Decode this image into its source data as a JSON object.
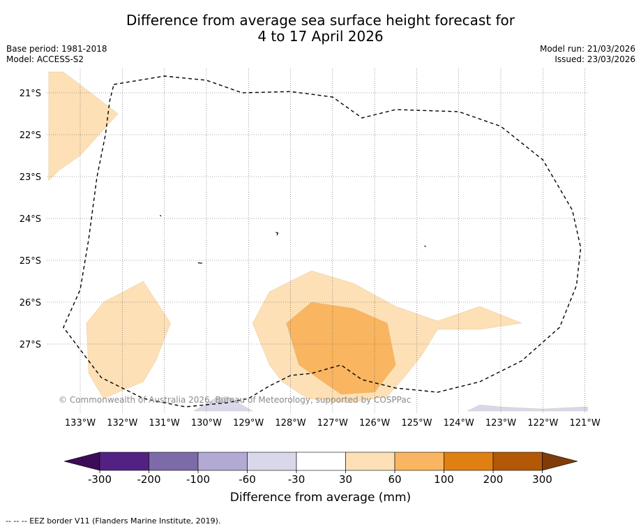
{
  "title": {
    "line1": "Difference from average sea surface height forecast for",
    "line2": "4 to 17 April 2026"
  },
  "meta_left": {
    "base_period": "Base period: 1981-2018",
    "model": "Model: ACCESS-S2"
  },
  "meta_right": {
    "model_run": "Model run: 21/03/2026",
    "issued": "Issued: 23/03/2026"
  },
  "map": {
    "lon_range": [
      -133.75,
      -120.9
    ],
    "lat_range": [
      -28.6,
      -20.4
    ],
    "lat_ticks": [
      {
        "lat": -21,
        "label": "21°S"
      },
      {
        "lat": -22,
        "label": "22°S"
      },
      {
        "lat": -23,
        "label": "23°S"
      },
      {
        "lat": -24,
        "label": "24°S"
      },
      {
        "lat": -25,
        "label": "25°S"
      },
      {
        "lat": -26,
        "label": "26°S"
      },
      {
        "lat": -27,
        "label": "27°S"
      }
    ],
    "lon_ticks": [
      {
        "lon": -133,
        "label": "133°W"
      },
      {
        "lon": -132,
        "label": "132°W"
      },
      {
        "lon": -131,
        "label": "131°W"
      },
      {
        "lon": -130,
        "label": "130°W"
      },
      {
        "lon": -129,
        "label": "129°W"
      },
      {
        "lon": -128,
        "label": "128°W"
      },
      {
        "lon": -127,
        "label": "127°W"
      },
      {
        "lon": -126,
        "label": "126°W"
      },
      {
        "lon": -125,
        "label": "125°W"
      },
      {
        "lon": -124,
        "label": "124°W"
      },
      {
        "lon": -123,
        "label": "123°W"
      },
      {
        "lon": -122,
        "label": "122°W"
      },
      {
        "lon": -121,
        "label": "121°W"
      }
    ],
    "regions": [
      {
        "name": "northwest-positive-area",
        "range": "30 to 60",
        "color": "#fde0b6",
        "coords": [
          [
            -133.75,
            -20.5
          ],
          [
            -133.4,
            -20.5
          ],
          [
            -132.1,
            -21.5
          ],
          [
            -133.0,
            -22.5
          ],
          [
            -133.5,
            -22.85
          ],
          [
            -133.75,
            -23.1
          ]
        ]
      },
      {
        "name": "southwest-positive-area",
        "range": "30 to 60",
        "color": "#fde0b6",
        "coords": [
          [
            -132.45,
            -26.0
          ],
          [
            -131.5,
            -25.5
          ],
          [
            -130.85,
            -26.5
          ],
          [
            -131.2,
            -27.4
          ],
          [
            -131.5,
            -27.9
          ],
          [
            -132.45,
            -28.3
          ],
          [
            -132.8,
            -27.7
          ],
          [
            -132.85,
            -26.5
          ]
        ]
      },
      {
        "name": "central-positive-area",
        "range": "30 to 60",
        "color": "#fde0b6",
        "coords": [
          [
            -127.5,
            -25.25
          ],
          [
            -126.5,
            -25.55
          ],
          [
            -125.5,
            -26.1
          ],
          [
            -124.5,
            -26.45
          ],
          [
            -123.5,
            -26.1
          ],
          [
            -122.5,
            -26.5
          ],
          [
            -123.5,
            -26.65
          ],
          [
            -124.5,
            -26.65
          ],
          [
            -124.9,
            -27.3
          ],
          [
            -125.3,
            -27.8
          ],
          [
            -125.7,
            -28.25
          ],
          [
            -126.6,
            -28.4
          ],
          [
            -127.6,
            -28.3
          ],
          [
            -128.2,
            -27.9
          ],
          [
            -128.5,
            -27.5
          ],
          [
            -128.9,
            -26.5
          ],
          [
            -128.5,
            -25.75
          ],
          [
            -128.0,
            -25.5
          ]
        ]
      },
      {
        "name": "central-core-positive-area",
        "range": "60 to 100",
        "color": "#f9b55f",
        "coords": [
          [
            -127.5,
            -26.0
          ],
          [
            -126.5,
            -26.15
          ],
          [
            -125.7,
            -26.5
          ],
          [
            -125.5,
            -27.5
          ],
          [
            -126.0,
            -28.15
          ],
          [
            -126.8,
            -28.2
          ],
          [
            -127.8,
            -27.5
          ],
          [
            -128.1,
            -26.5
          ]
        ]
      },
      {
        "name": "south-negative-area",
        "range": "-60 to -30",
        "color": "#d9d8ea",
        "coords": [
          [
            -130.3,
            -28.6
          ],
          [
            -129.8,
            -28.3
          ],
          [
            -129.5,
            -28.25
          ],
          [
            -128.9,
            -28.6
          ]
        ]
      },
      {
        "name": "southeast-negative-area",
        "range": "-60 to -30",
        "color": "#d9d8ea",
        "coords": [
          [
            -123.8,
            -28.6
          ],
          [
            -123.5,
            -28.45
          ],
          [
            -123.0,
            -28.5
          ],
          [
            -122.0,
            -28.55
          ],
          [
            -121.0,
            -28.5
          ],
          [
            -120.9,
            -28.5
          ],
          [
            -120.9,
            -28.6
          ]
        ]
      }
    ],
    "eez_border": [
      [
        -132.2,
        -20.8
      ],
      [
        -131.0,
        -20.6
      ],
      [
        -130.0,
        -20.7
      ],
      [
        -129.15,
        -21.0
      ],
      [
        -128.0,
        -20.97
      ],
      [
        -127.0,
        -21.1
      ],
      [
        -126.3,
        -21.6
      ],
      [
        -125.5,
        -21.4
      ],
      [
        -124.0,
        -21.45
      ],
      [
        -123.0,
        -21.8
      ],
      [
        -122.0,
        -22.6
      ],
      [
        -121.3,
        -23.8
      ],
      [
        -121.1,
        -24.7
      ],
      [
        -121.2,
        -25.6
      ],
      [
        -121.6,
        -26.6
      ],
      [
        -122.5,
        -27.4
      ],
      [
        -123.5,
        -27.9
      ],
      [
        -124.5,
        -28.15
      ],
      [
        -125.5,
        -28.05
      ],
      [
        -126.3,
        -27.85
      ],
      [
        -126.8,
        -27.5
      ],
      [
        -127.5,
        -27.7
      ],
      [
        -128.0,
        -27.75
      ],
      [
        -128.5,
        -28.0
      ],
      [
        -129.0,
        -28.3
      ],
      [
        -129.5,
        -28.4
      ],
      [
        -130.0,
        -28.45
      ],
      [
        -130.5,
        -28.5
      ],
      [
        -131.5,
        -28.3
      ],
      [
        -132.5,
        -27.8
      ],
      [
        -133.4,
        -26.6
      ],
      [
        -133.0,
        -25.7
      ],
      [
        -132.8,
        -24.5
      ],
      [
        -132.6,
        -23.0
      ],
      [
        -132.4,
        -22.0
      ],
      [
        -132.3,
        -21.2
      ],
      [
        -132.2,
        -20.8
      ]
    ],
    "islands": [
      {
        "name": "island-1",
        "coords": [
          [
            -131.1,
            -23.92
          ],
          [
            -131.08,
            -23.95
          ]
        ]
      },
      {
        "name": "island-2",
        "coords": [
          [
            -128.35,
            -24.33
          ],
          [
            -128.3,
            -24.35
          ],
          [
            -128.32,
            -24.4
          ]
        ]
      },
      {
        "name": "island-3",
        "coords": [
          [
            -124.82,
            -24.66
          ],
          [
            -124.78,
            -24.67
          ]
        ]
      },
      {
        "name": "island-4",
        "coords": [
          [
            -130.2,
            -25.06
          ],
          [
            -130.1,
            -25.07
          ]
        ]
      }
    ],
    "copyright": "© Commonwealth of Australia 2026, Bureau of Meteorology, supported by COSPPac"
  },
  "colorbar": {
    "colors": [
      "#3d0b58",
      "#532183",
      "#7c6aa9",
      "#b2aad2",
      "#d9d8ea",
      "#ffffff",
      "#fde0b6",
      "#f9b55f",
      "#e08013",
      "#b35806",
      "#7f3b08"
    ],
    "ticks": [
      "-300",
      "-200",
      "-100",
      "-60",
      "-30",
      "30",
      "60",
      "100",
      "200",
      "300"
    ],
    "label": "Difference from average (mm)"
  },
  "footnote": "--  --  -- EEZ border V11 (Flanders Marine Institute, 2019)."
}
